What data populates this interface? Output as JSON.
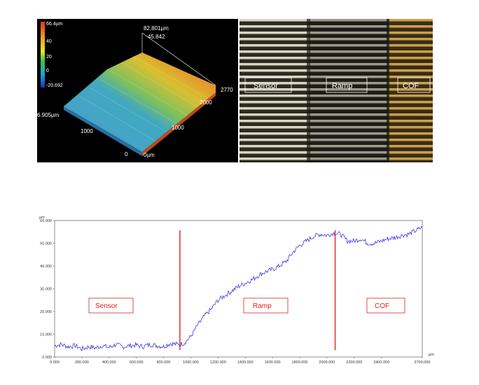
{
  "surface_3d": {
    "colorbar_max": "66.4µm",
    "colorbar_ticks": [
      "40",
      "20",
      "0"
    ],
    "colorbar_min": "-20.692",
    "z_top_label": "82.801µm",
    "z_sub_label": "45.842",
    "x_far_label": "2770",
    "x_ticks": [
      "2000",
      "1000"
    ],
    "x_zero": "0µm",
    "y_far_label": "6.905µm",
    "y_ticks": [
      "1000",
      "0"
    ]
  },
  "micrograph": {
    "labels": [
      "Sensor",
      "Ramp",
      "COF"
    ]
  },
  "chart_data": {
    "type": "line",
    "x_unit": "µm",
    "y_unit": "µm",
    "xlim": [
      0,
      2700
    ],
    "ylim": [
      0,
      60
    ],
    "x_ticks": [
      "0.000",
      "200.000",
      "400.000",
      "600.000",
      "800.000",
      "1000.000",
      "1200.000",
      "1400.000",
      "1600.000",
      "1800.000",
      "2000.000",
      "2200.000",
      "2400.000",
      "2700.000"
    ],
    "x_tick_values": [
      0,
      200,
      400,
      600,
      800,
      1000,
      1200,
      1400,
      1600,
      1800,
      2000,
      2200,
      2400,
      2700
    ],
    "y_ticks": [
      "0.000",
      "10.000",
      "20.000",
      "30.000",
      "40.000",
      "50.000",
      "60.000"
    ],
    "y_tick_values": [
      0,
      10,
      20,
      30,
      40,
      50,
      60
    ],
    "series": [
      {
        "color": "#3a3adf",
        "x": [
          0,
          50,
          100,
          150,
          200,
          250,
          300,
          350,
          400,
          450,
          500,
          550,
          600,
          650,
          700,
          750,
          800,
          850,
          900,
          950,
          1000,
          1050,
          1100,
          1150,
          1200,
          1250,
          1300,
          1350,
          1400,
          1450,
          1500,
          1550,
          1600,
          1650,
          1700,
          1750,
          1800,
          1850,
          1900,
          1950,
          2000,
          2050,
          2100,
          2150,
          2200,
          2250,
          2300,
          2350,
          2400,
          2450,
          2500,
          2550,
          2600,
          2650,
          2700
        ],
        "y": [
          5,
          5.5,
          4.5,
          5,
          3.5,
          4.5,
          4,
          5,
          4.2,
          5.5,
          4.5,
          5,
          5.2,
          4.6,
          5.5,
          5,
          4.6,
          6,
          5.5,
          6,
          9,
          14,
          18,
          21,
          25,
          27,
          29,
          31,
          32.5,
          34,
          36,
          37.5,
          38.5,
          40,
          42,
          46,
          49,
          51,
          53,
          54,
          53.5,
          54.5,
          54,
          51,
          51,
          52,
          50,
          50,
          51,
          52,
          52.5,
          53.5,
          54,
          55.5,
          57
        ]
      }
    ],
    "dividers": [
      920,
      2060
    ],
    "regions": [
      "Sensor",
      "Ramp",
      "COF"
    ]
  }
}
